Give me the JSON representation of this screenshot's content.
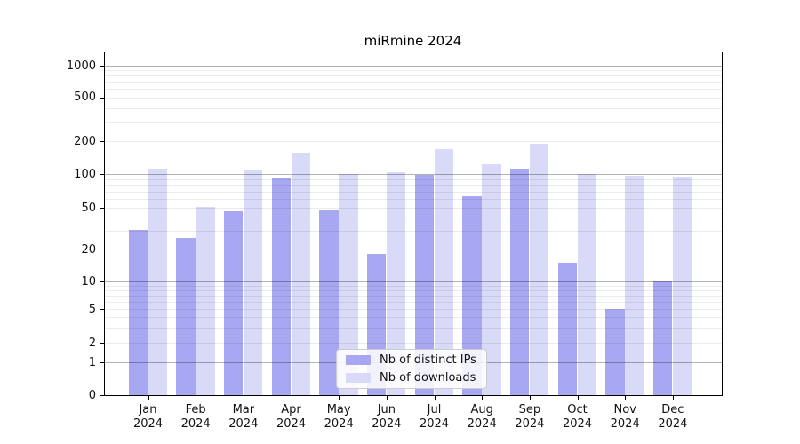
{
  "title": "miRmine 2024",
  "legend": {
    "items": [
      {
        "label": "Nb of distinct IPs",
        "color": "#a8a8f2"
      },
      {
        "label": "Nb of downloads",
        "color": "#d9d9f8"
      }
    ]
  },
  "colors": {
    "bar_distinct_ips": "#a8a8f2",
    "bar_downloads": "#d9d9f8",
    "major_grid": "rgba(0,0,0,0.30)",
    "minor_grid": "rgba(0,0,0,0.075)",
    "spine": "#000000",
    "text": "#111111"
  },
  "chart_data": {
    "type": "bar",
    "title": "miRmine 2024",
    "categories": [
      "Jan 2024",
      "Feb 2024",
      "Mar 2024",
      "Apr 2024",
      "May 2024",
      "Jun 2024",
      "Jul 2024",
      "Aug 2024",
      "Sep 2024",
      "Oct 2024",
      "Nov 2024",
      "Dec 2024"
    ],
    "series": [
      {
        "name": "Nb of distinct IPs",
        "color": "#a8a8f2",
        "values": [
          31,
          26,
          46,
          91,
          48,
          18,
          98,
          64,
          112,
          15,
          5,
          10
        ]
      },
      {
        "name": "Nb of downloads",
        "color": "#d9d9f8",
        "values": [
          112,
          51,
          110,
          158,
          101,
          105,
          169,
          123,
          190,
          100,
          97,
          96
        ]
      }
    ],
    "yscale": "symlog",
    "yticks": [
      0,
      1,
      2,
      5,
      10,
      20,
      50,
      100,
      200,
      500,
      1000
    ],
    "ylim": [
      0,
      1400
    ],
    "grid": "on",
    "legend_position": "lower center",
    "xlabel": "",
    "ylabel": ""
  }
}
